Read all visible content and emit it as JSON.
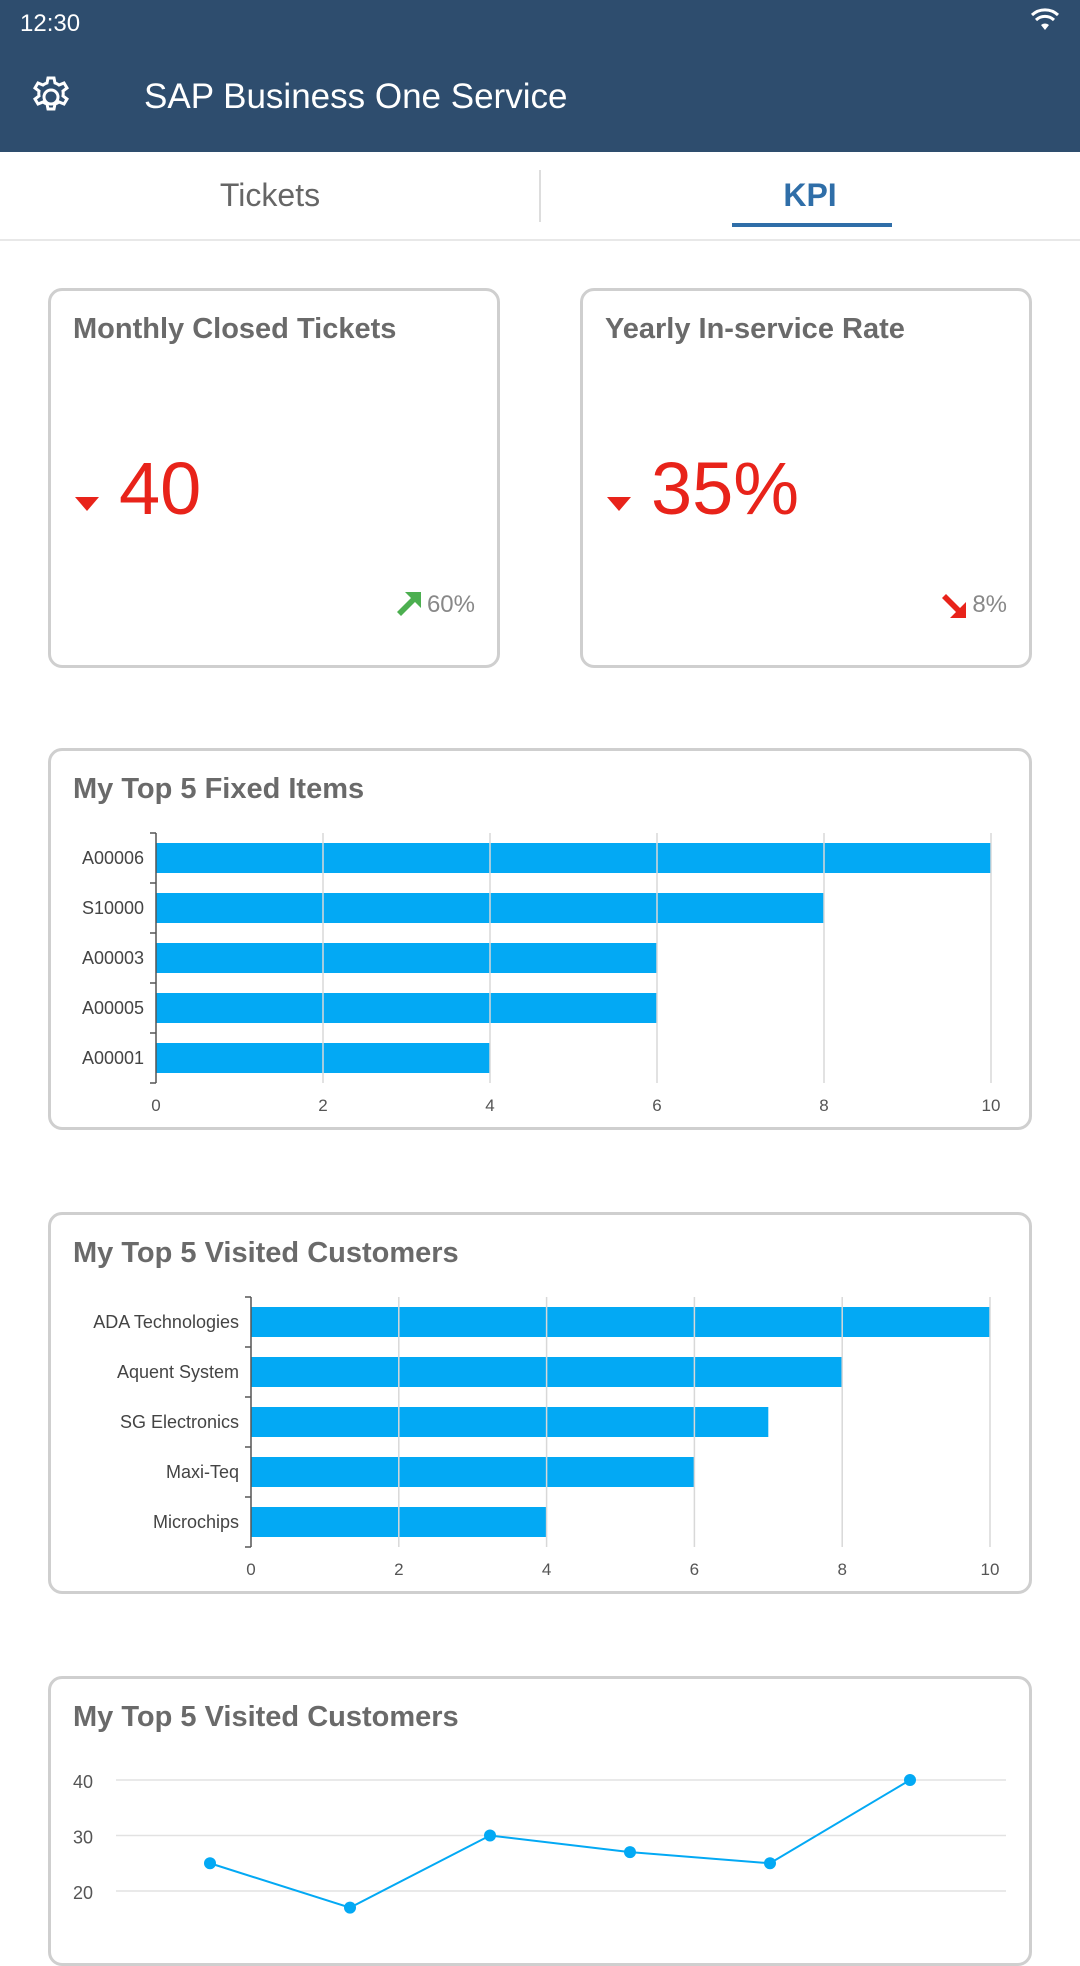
{
  "status_bar": {
    "time": "12:30",
    "wifi_icon": "wifi-icon"
  },
  "app_bar": {
    "title": "SAP Business One Service",
    "settings_icon": "gear-icon"
  },
  "tabs": [
    {
      "label": "Tickets",
      "active": false
    },
    {
      "label": "KPI",
      "active": true
    }
  ],
  "kpis": [
    {
      "title": "Monthly Closed Tickets",
      "value": "40",
      "trend": "60%",
      "trend_direction": "up",
      "value_indicator": "down"
    },
    {
      "title": "Yearly In-service Rate",
      "value": "35%",
      "trend": "8%",
      "trend_direction": "down",
      "value_indicator": "down"
    }
  ],
  "colors": {
    "accent": "#2f6ea8",
    "appbar": "#2e4d6e",
    "bar": "#03a9f4",
    "negative": "#e8231a",
    "positive": "#4caf50"
  },
  "chart_data": [
    {
      "type": "bar",
      "orientation": "horizontal",
      "title": "My Top 5 Fixed Items",
      "categories": [
        "A00006",
        "S10000",
        "A00003",
        "A00005",
        "A00001"
      ],
      "values": [
        10,
        8,
        6,
        6,
        4
      ],
      "xlim": [
        0,
        10
      ],
      "ticks": [
        0,
        2,
        4,
        6,
        8,
        10
      ],
      "grid": true
    },
    {
      "type": "bar",
      "orientation": "horizontal",
      "title": "My Top 5 Visited Customers",
      "categories": [
        "ADA Technologies",
        "Aquent System",
        "SG Electronics",
        "Maxi-Teq",
        "Microchips"
      ],
      "values": [
        10,
        8,
        7,
        6,
        4
      ],
      "xlim": [
        0,
        10
      ],
      "ticks": [
        0,
        2,
        4,
        6,
        8,
        10
      ],
      "grid": true
    },
    {
      "type": "line",
      "title": "My Top 5 Visited Customers",
      "values": [
        25,
        17,
        30,
        27,
        25,
        40
      ],
      "yticks": [
        20,
        30,
        40
      ],
      "grid": true
    }
  ]
}
